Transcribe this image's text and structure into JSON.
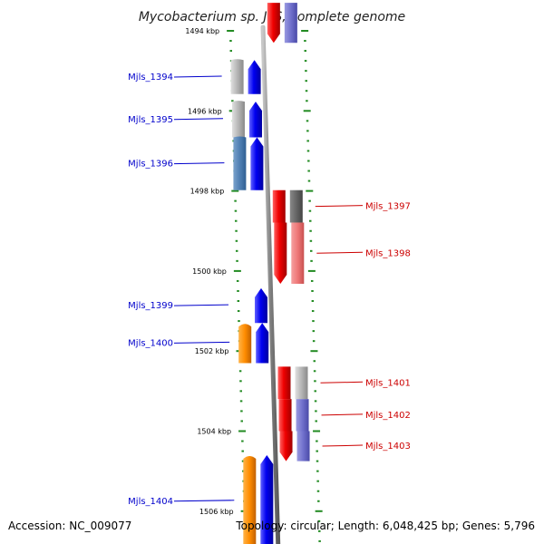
{
  "title": "Mycobacterium sp. JLS, complete genome",
  "accession_text": "Accession: NC_009077",
  "topology_text": "Topology: circular; Length: 6,048,425 bp; Genes: 5,796",
  "colors": {
    "forward": "#0000ee",
    "reverse": "#ee0000",
    "tick": "#228b22",
    "backbone": "#888888",
    "orange": "#ff8c00",
    "steelblue": "#4f7fb3",
    "gray": "#b5b5b5",
    "darkgray": "#666666",
    "salmon": "#ee7777",
    "slateblue": "#7070cc",
    "pale": "#dcdcf0"
  },
  "kbp_labels": [
    {
      "kbp": 1494,
      "text": "1494 kbp"
    },
    {
      "kbp": 1496,
      "text": "1496 kbp"
    },
    {
      "kbp": 1498,
      "text": "1498 kbp"
    },
    {
      "kbp": 1500,
      "text": "1500 kbp"
    },
    {
      "kbp": 1502,
      "text": "1502 kbp"
    },
    {
      "kbp": 1504,
      "text": "1504 kbp"
    },
    {
      "kbp": 1506,
      "text": "1506 kbp"
    }
  ],
  "genes": [
    {
      "name": "Mjls_1394",
      "strand": "+",
      "start": 1494.73,
      "end": 1495.58,
      "arrow": true,
      "companion": "gray"
    },
    {
      "name": "Mjls_1395",
      "strand": "+",
      "start": 1495.77,
      "end": 1496.66,
      "arrow": true,
      "companion": "gray"
    },
    {
      "name": "Mjls_1396",
      "strand": "+",
      "start": 1496.66,
      "end": 1497.98,
      "arrow": true,
      "companion": "steelblue"
    },
    {
      "name": "Mjls_1397",
      "strand": "-",
      "start": 1497.98,
      "end": 1498.79,
      "arrow": false,
      "companion": "darkgray"
    },
    {
      "name": "Mjls_1398",
      "strand": "-",
      "start": 1498.79,
      "end": 1500.32,
      "arrow": true,
      "companion": "salmon"
    },
    {
      "name": "Mjls_1399",
      "strand": "+",
      "start": 1500.43,
      "end": 1501.3,
      "arrow": true,
      "companion": ""
    },
    {
      "name": "Mjls_1400",
      "strand": "+",
      "start": 1501.3,
      "end": 1502.3,
      "arrow": true,
      "companion": "orange"
    },
    {
      "name": "Mjls_1401",
      "strand": "-",
      "start": 1502.39,
      "end": 1503.2,
      "arrow": false,
      "companion": "gray"
    },
    {
      "name": "Mjls_1402",
      "strand": "-",
      "start": 1503.2,
      "end": 1504.0,
      "arrow": false,
      "companion": "slateblue"
    },
    {
      "name": "Mjls_1403",
      "strand": "-",
      "start": 1504.0,
      "end": 1504.75,
      "arrow": true,
      "companion": "slateblue"
    },
    {
      "name": "Mjls_1404",
      "strand": "+",
      "start": 1504.6,
      "end": 1506.9,
      "arrow": true,
      "companion": "orange"
    }
  ],
  "edge_features": [
    {
      "id": "top-reverse-gene",
      "strand": "-",
      "start": 1493.3,
      "end": 1494.3,
      "arrow": true,
      "companion": "slateblue"
    }
  ]
}
